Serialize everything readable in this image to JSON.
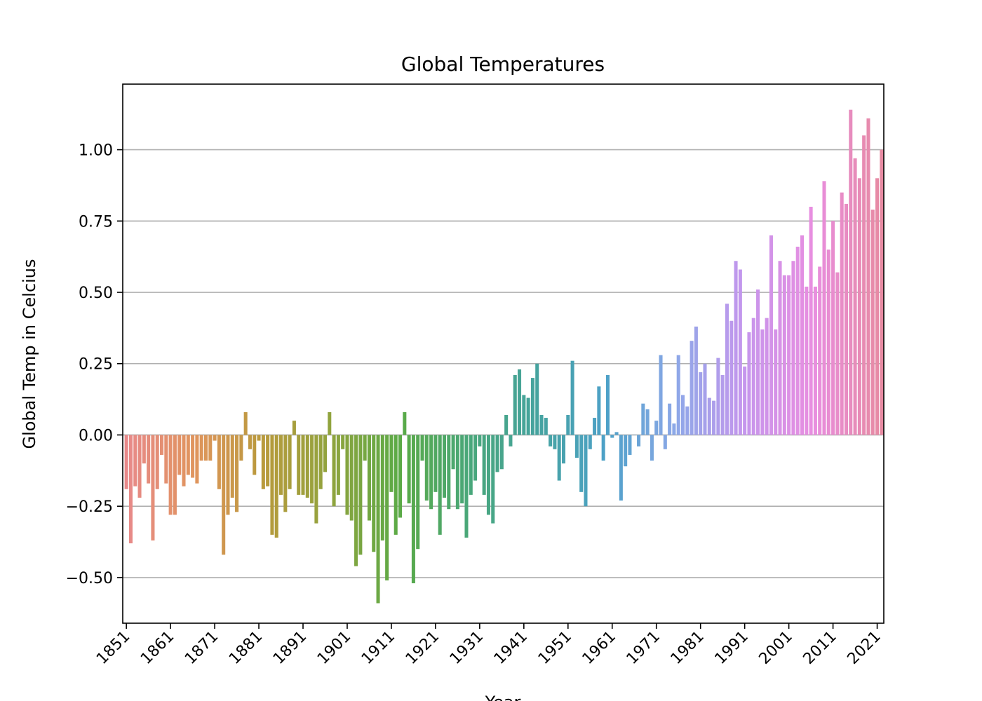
{
  "chart_data": {
    "type": "bar",
    "title": "Global Temperatures",
    "xlabel": "Year",
    "ylabel": "Global Temp in Celcius",
    "x_start": 1851,
    "x_end": 2023,
    "xtick_labels": [
      "1851",
      "1861",
      "1871",
      "1881",
      "1891",
      "1901",
      "1911",
      "1921",
      "1931",
      "1941",
      "1951",
      "1961",
      "1971",
      "1981",
      "1991",
      "2001",
      "2011",
      "2021"
    ],
    "ytick_labels": [
      "−0.50",
      "−0.25",
      "0.00",
      "0.25",
      "0.50",
      "0.75",
      "1.00"
    ],
    "ytick_values": [
      -0.5,
      -0.25,
      0,
      0.25,
      0.5,
      0.75,
      1.0
    ],
    "ylim": [
      -0.66,
      1.23
    ],
    "grid": "horizontal",
    "legend": "none",
    "values": [
      -0.19,
      -0.38,
      -0.18,
      -0.22,
      -0.1,
      -0.17,
      -0.37,
      -0.19,
      -0.07,
      -0.17,
      -0.28,
      -0.28,
      -0.14,
      -0.18,
      -0.14,
      -0.15,
      -0.17,
      -0.09,
      -0.09,
      -0.09,
      -0.02,
      -0.19,
      -0.42,
      -0.28,
      -0.22,
      -0.27,
      -0.09,
      0.08,
      -0.05,
      -0.14,
      -0.02,
      -0.19,
      -0.18,
      -0.35,
      -0.36,
      -0.21,
      -0.27,
      -0.19,
      0.05,
      -0.21,
      -0.21,
      -0.22,
      -0.24,
      -0.31,
      -0.19,
      -0.13,
      0.08,
      -0.25,
      -0.21,
      -0.05,
      -0.28,
      -0.3,
      -0.46,
      -0.42,
      -0.09,
      -0.3,
      -0.41,
      -0.59,
      -0.37,
      -0.51,
      -0.2,
      -0.35,
      -0.29,
      0.08,
      -0.24,
      -0.52,
      -0.4,
      -0.09,
      -0.23,
      -0.26,
      -0.2,
      -0.35,
      -0.22,
      -0.26,
      -0.12,
      -0.26,
      -0.24,
      -0.36,
      -0.21,
      -0.16,
      -0.04,
      -0.21,
      -0.28,
      -0.31,
      -0.13,
      -0.12,
      0.07,
      -0.04,
      0.21,
      0.23,
      0.14,
      0.13,
      0.2,
      0.25,
      0.07,
      0.06,
      -0.04,
      -0.05,
      -0.16,
      -0.1,
      0.07,
      0.26,
      -0.08,
      -0.2,
      -0.25,
      -0.05,
      0.06,
      0.17,
      -0.09,
      0.21,
      -0.01,
      0.01,
      -0.23,
      -0.11,
      -0.07,
      0.0,
      -0.04,
      0.11,
      0.09,
      -0.09,
      0.05,
      0.28,
      -0.05,
      0.11,
      0.04,
      0.28,
      0.14,
      0.1,
      0.33,
      0.38,
      0.22,
      0.25,
      0.13,
      0.12,
      0.27,
      0.21,
      0.46,
      0.4,
      0.61,
      0.58,
      0.24,
      0.36,
      0.41,
      0.51,
      0.37,
      0.41,
      0.7,
      0.37,
      0.61,
      0.56,
      0.56,
      0.61,
      0.66,
      0.7,
      0.52,
      0.8,
      0.52,
      0.59,
      0.89,
      0.65,
      0.75,
      0.57,
      0.85,
      0.81,
      1.14,
      0.97,
      0.9,
      1.05,
      1.11,
      0.79,
      0.9,
      1.0
    ],
    "palette_stops": [
      "#e8898a",
      "#e0955d",
      "#b89a3c",
      "#8fa43e",
      "#5aaa47",
      "#49a77a",
      "#46a3a0",
      "#4da1c8",
      "#8da8e8",
      "#c596ed",
      "#e88ee0",
      "#e78aa2"
    ]
  }
}
